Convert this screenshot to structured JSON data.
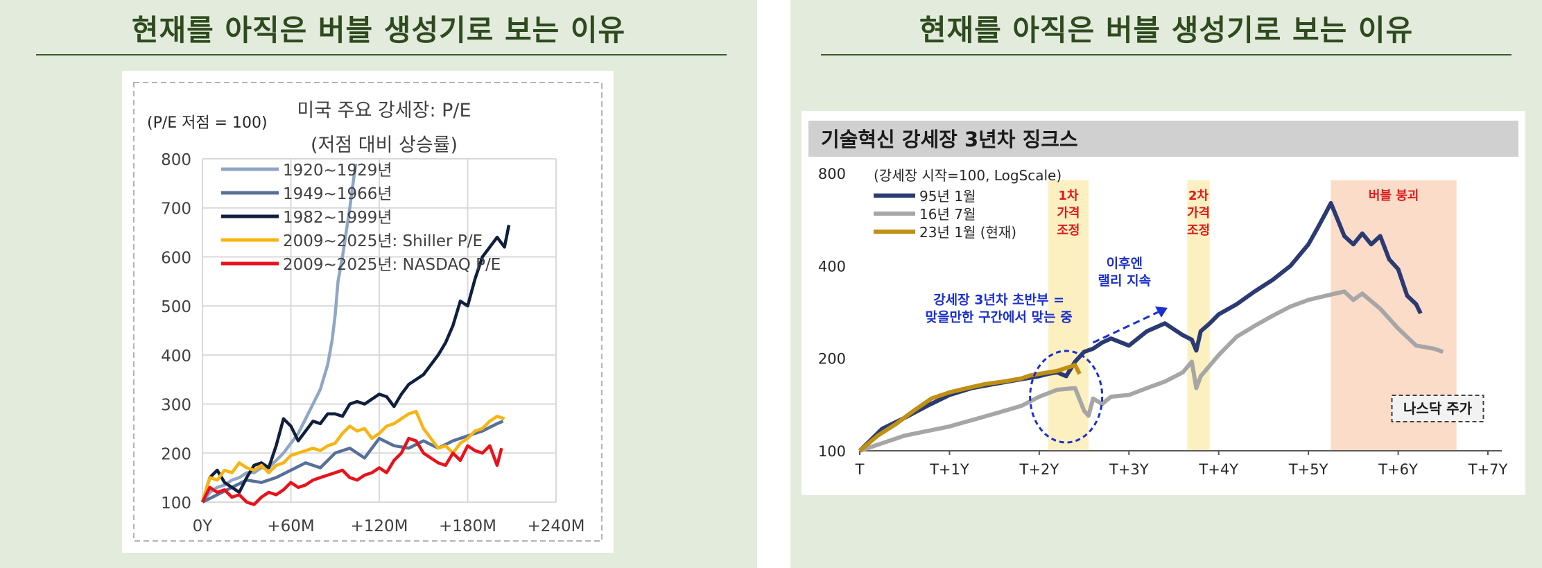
{
  "left_panel": {
    "title": "현재를 아직은 버블 생성기로 보는 이유"
  },
  "right_panel": {
    "title": "현재를 아직은 버블 생성기로 보는 이유"
  },
  "chart_data": [
    {
      "type": "line",
      "title": "미국 주요 강세장: P/E",
      "subtitle": "(저점 대비 상승률)",
      "ylabel": "(P/E 저점 = 100)",
      "xlim": [
        0,
        240
      ],
      "ylim": [
        100,
        800
      ],
      "x_tick_labels": [
        "0Y",
        "+60M",
        "+120M",
        "+180M",
        "+240M"
      ],
      "x_ticks": [
        0,
        60,
        120,
        180,
        240
      ],
      "y_ticks": [
        100,
        200,
        300,
        400,
        500,
        600,
        700,
        800
      ],
      "grid": true,
      "legend": "top-left",
      "series": [
        {
          "name": "1920~1929년",
          "color": "#8fa6c4",
          "x": [
            0,
            5,
            10,
            15,
            20,
            25,
            30,
            35,
            40,
            45,
            50,
            55,
            60,
            65,
            70,
            75,
            80,
            85,
            88,
            90,
            92,
            95,
            98,
            100,
            104
          ],
          "y": [
            100,
            120,
            130,
            135,
            145,
            150,
            160,
            160,
            170,
            170,
            185,
            200,
            220,
            240,
            270,
            300,
            330,
            380,
            430,
            480,
            550,
            600,
            660,
            700,
            790
          ]
        },
        {
          "name": "1949~1966년",
          "color": "#56709a",
          "x": [
            0,
            10,
            20,
            30,
            40,
            50,
            60,
            70,
            80,
            90,
            100,
            110,
            120,
            130,
            140,
            150,
            160,
            170,
            180,
            190,
            200,
            204
          ],
          "y": [
            100,
            115,
            130,
            145,
            140,
            150,
            165,
            180,
            170,
            200,
            210,
            190,
            230,
            215,
            210,
            225,
            210,
            225,
            235,
            245,
            260,
            265
          ]
        },
        {
          "name": "1982~1999년",
          "color": "#0f1f3d",
          "x": [
            0,
            5,
            10,
            15,
            20,
            25,
            30,
            35,
            40,
            45,
            50,
            55,
            60,
            65,
            70,
            75,
            80,
            85,
            90,
            95,
            100,
            105,
            110,
            115,
            120,
            125,
            130,
            135,
            140,
            145,
            150,
            155,
            160,
            165,
            170,
            175,
            180,
            185,
            190,
            195,
            200,
            205,
            208
          ],
          "y": [
            100,
            150,
            165,
            140,
            130,
            120,
            150,
            175,
            180,
            170,
            215,
            270,
            255,
            225,
            245,
            265,
            260,
            280,
            280,
            275,
            300,
            305,
            300,
            310,
            320,
            315,
            295,
            320,
            340,
            350,
            360,
            380,
            400,
            425,
            460,
            510,
            500,
            555,
            600,
            620,
            640,
            620,
            665
          ]
        },
        {
          "name": "2009~2025년: Shiller P/E",
          "color": "#f8b412",
          "x": [
            0,
            5,
            10,
            15,
            20,
            25,
            30,
            35,
            40,
            45,
            50,
            55,
            60,
            65,
            70,
            75,
            80,
            85,
            90,
            95,
            100,
            105,
            110,
            115,
            120,
            125,
            130,
            135,
            140,
            145,
            150,
            155,
            160,
            165,
            170,
            175,
            180,
            185,
            190,
            195,
            200,
            205
          ],
          "y": [
            100,
            150,
            145,
            165,
            160,
            180,
            170,
            165,
            175,
            160,
            175,
            180,
            195,
            200,
            205,
            210,
            205,
            215,
            220,
            240,
            255,
            245,
            250,
            230,
            240,
            255,
            260,
            270,
            280,
            285,
            250,
            230,
            210,
            215,
            200,
            220,
            230,
            245,
            250,
            265,
            275,
            270
          ]
        },
        {
          "name": "2009~2025년: NASDAQ P/E",
          "color": "#e8121b",
          "x": [
            0,
            5,
            10,
            15,
            20,
            25,
            30,
            35,
            40,
            45,
            50,
            55,
            60,
            65,
            70,
            75,
            80,
            85,
            90,
            95,
            100,
            105,
            110,
            115,
            120,
            125,
            130,
            135,
            140,
            145,
            150,
            155,
            160,
            165,
            170,
            175,
            180,
            185,
            190,
            195,
            200,
            203
          ],
          "y": [
            100,
            130,
            120,
            125,
            110,
            115,
            100,
            95,
            110,
            120,
            115,
            125,
            140,
            130,
            135,
            145,
            150,
            155,
            160,
            165,
            150,
            145,
            155,
            160,
            170,
            160,
            185,
            200,
            230,
            225,
            200,
            190,
            180,
            175,
            200,
            185,
            215,
            205,
            200,
            215,
            175,
            210
          ]
        }
      ]
    },
    {
      "type": "line",
      "title": "기술혁신 강세장 3년차 징크스",
      "ylabel": "(강세장 시작=100, LogScale)",
      "xlim": [
        0,
        7
      ],
      "ylim": [
        100,
        800
      ],
      "yscale": "log",
      "x_tick_labels": [
        "T",
        "T+1Y",
        "T+2Y",
        "T+3Y",
        "T+4Y",
        "T+5Y",
        "T+6Y",
        "T+7Y"
      ],
      "x_ticks": [
        0,
        1,
        2,
        3,
        4,
        5,
        6,
        7
      ],
      "y_ticks": [
        100,
        200,
        400,
        800
      ],
      "grid": false,
      "legend": "top-left",
      "series": [
        {
          "name": "95년 1월",
          "color": "#2b3a72",
          "x": [
            0,
            0.25,
            0.5,
            0.75,
            1.0,
            1.25,
            1.5,
            1.75,
            2.0,
            2.1,
            2.2,
            2.3,
            2.4,
            2.5,
            2.6,
            2.7,
            2.8,
            3.0,
            3.2,
            3.4,
            3.6,
            3.7,
            3.75,
            3.8,
            3.9,
            4.0,
            4.2,
            4.4,
            4.6,
            4.8,
            5.0,
            5.1,
            5.2,
            5.25,
            5.3,
            5.4,
            5.5,
            5.6,
            5.7,
            5.8,
            5.9,
            6.0,
            6.1,
            6.2,
            6.25
          ],
          "y": [
            100,
            118,
            128,
            140,
            152,
            160,
            165,
            170,
            175,
            178,
            180,
            175,
            195,
            210,
            215,
            225,
            232,
            220,
            245,
            260,
            238,
            230,
            212,
            245,
            260,
            278,
            300,
            330,
            360,
            400,
            470,
            530,
            600,
            640,
            590,
            500,
            470,
            510,
            470,
            500,
            420,
            390,
            320,
            300,
            280
          ]
        },
        {
          "name": "16년 7월",
          "color": "#a6a6a6",
          "x": [
            0,
            0.5,
            1.0,
            1.5,
            1.8,
            2.0,
            2.2,
            2.4,
            2.5,
            2.55,
            2.6,
            2.7,
            2.8,
            3.0,
            3.2,
            3.4,
            3.6,
            3.7,
            3.75,
            3.8,
            4.0,
            4.2,
            4.4,
            4.6,
            4.8,
            5.0,
            5.2,
            5.4,
            5.5,
            5.6,
            5.8,
            6.0,
            6.2,
            6.4,
            6.5
          ],
          "y": [
            100,
            112,
            120,
            132,
            140,
            150,
            158,
            160,
            135,
            130,
            148,
            142,
            150,
            152,
            160,
            168,
            180,
            195,
            160,
            175,
            205,
            235,
            255,
            275,
            295,
            310,
            320,
            330,
            310,
            325,
            290,
            250,
            220,
            215,
            210
          ]
        },
        {
          "name": "23년 1월 (현재)",
          "color": "#bf9014",
          "x": [
            0,
            0.2,
            0.4,
            0.6,
            0.8,
            1.0,
            1.2,
            1.4,
            1.6,
            1.8,
            1.9,
            2.0,
            2.1,
            2.2,
            2.3,
            2.4,
            2.45
          ],
          "y": [
            100,
            112,
            122,
            135,
            148,
            155,
            160,
            165,
            168,
            172,
            176,
            178,
            180,
            182,
            186,
            190,
            178
          ]
        }
      ],
      "shaded_regions": [
        {
          "start": 2.1,
          "end": 2.55,
          "label": [
            "1차",
            "가격",
            "조정"
          ],
          "color": "#fdf0c0"
        },
        {
          "start": 3.65,
          "end": 3.9,
          "label": [
            "2차",
            "가격",
            "조정"
          ],
          "color": "#fdf0c0"
        },
        {
          "start": 5.25,
          "end": 6.65,
          "label": [
            "버블 붕괴"
          ],
          "color": "#fbdcc8"
        }
      ],
      "annotations": [
        {
          "text": [
            "강세장 3년차 초반부 =",
            "맞을만한 구간에서 맞는 중"
          ]
        },
        {
          "text": [
            "이후엔",
            "랠리 지속"
          ]
        },
        {
          "text": [
            "나스닥 주가"
          ]
        }
      ]
    }
  ]
}
